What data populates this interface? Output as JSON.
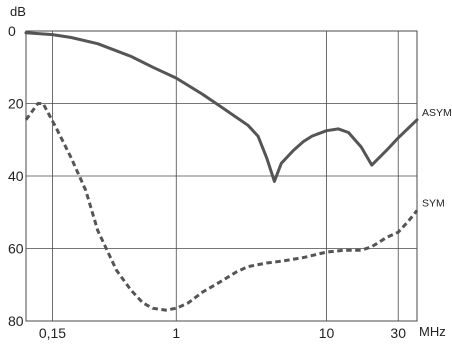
{
  "chart_data": {
    "type": "line",
    "ylabel": "dB",
    "xlabel": "MHz",
    "x_scale": "log",
    "xlim": [
      0.1,
      40
    ],
    "ylim": [
      0,
      80
    ],
    "y_inverted": true,
    "grid": true,
    "y_ticks": [
      0,
      20,
      40,
      60,
      80
    ],
    "y_tick_labels": [
      "0",
      "20",
      "40",
      "60",
      "80"
    ],
    "x_ticks": [
      0.15,
      1,
      10,
      30
    ],
    "x_tick_labels": [
      "0,15",
      "1",
      "10",
      "30"
    ],
    "x_gridlines": [
      0.15,
      1,
      10,
      30
    ],
    "series": [
      {
        "name": "ASYM",
        "color": "#555555",
        "style": "solid",
        "points": [
          [
            0.1,
            0.5
          ],
          [
            0.15,
            1
          ],
          [
            0.2,
            1.8
          ],
          [
            0.3,
            3.5
          ],
          [
            0.5,
            7
          ],
          [
            0.7,
            10
          ],
          [
            1,
            13
          ],
          [
            1.5,
            17.5
          ],
          [
            2,
            21
          ],
          [
            3,
            26
          ],
          [
            3.5,
            29
          ],
          [
            4,
            35
          ],
          [
            4.5,
            41.5
          ],
          [
            5,
            36.5
          ],
          [
            6,
            33
          ],
          [
            7,
            30.5
          ],
          [
            8,
            29
          ],
          [
            10,
            27.5
          ],
          [
            12,
            27
          ],
          [
            14,
            28
          ],
          [
            17,
            32
          ],
          [
            20,
            37
          ],
          [
            25,
            33
          ],
          [
            30,
            29.5
          ],
          [
            40,
            24.5
          ]
        ]
      },
      {
        "name": "SYM",
        "color": "#555555",
        "style": "dashed",
        "points": [
          [
            0.1,
            24.5
          ],
          [
            0.12,
            20
          ],
          [
            0.13,
            20
          ],
          [
            0.16,
            27
          ],
          [
            0.2,
            35
          ],
          [
            0.25,
            44
          ],
          [
            0.3,
            55
          ],
          [
            0.4,
            66
          ],
          [
            0.5,
            71.5
          ],
          [
            0.6,
            75
          ],
          [
            0.7,
            76.5
          ],
          [
            0.85,
            77
          ],
          [
            1,
            76.5
          ],
          [
            1.2,
            75
          ],
          [
            1.5,
            72
          ],
          [
            2,
            69
          ],
          [
            2.5,
            66.5
          ],
          [
            3,
            65
          ],
          [
            4,
            64
          ],
          [
            5,
            63.5
          ],
          [
            7,
            62.5
          ],
          [
            10,
            61
          ],
          [
            13,
            60.5
          ],
          [
            17,
            60.5
          ],
          [
            20,
            59.5
          ],
          [
            25,
            57
          ],
          [
            30,
            55.5
          ],
          [
            35,
            52.5
          ],
          [
            40,
            49.5
          ]
        ]
      }
    ]
  }
}
